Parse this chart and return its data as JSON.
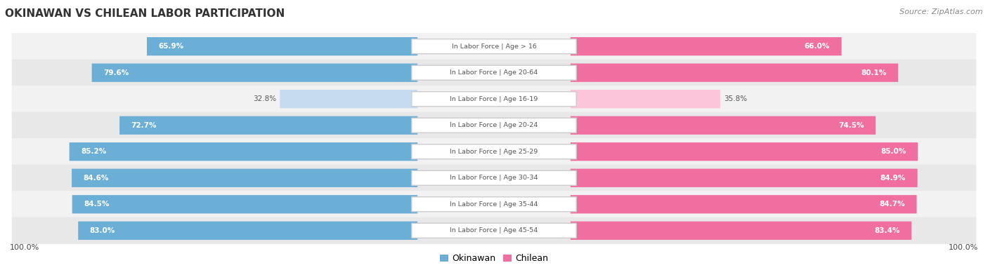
{
  "title": "OKINAWAN VS CHILEAN LABOR PARTICIPATION",
  "source": "Source: ZipAtlas.com",
  "categories": [
    "In Labor Force | Age > 16",
    "In Labor Force | Age 20-64",
    "In Labor Force | Age 16-19",
    "In Labor Force | Age 20-24",
    "In Labor Force | Age 25-29",
    "In Labor Force | Age 30-34",
    "In Labor Force | Age 35-44",
    "In Labor Force | Age 45-54"
  ],
  "okinawan_values": [
    65.9,
    79.6,
    32.8,
    72.7,
    85.2,
    84.6,
    84.5,
    83.0
  ],
  "chilean_values": [
    66.0,
    80.1,
    35.8,
    74.5,
    85.0,
    84.9,
    84.7,
    83.4
  ],
  "okinawan_color": "#6baed6",
  "chilean_color": "#f06fa0",
  "okinawan_color_light": "#c6dbef",
  "chilean_color_light": "#fcc5da",
  "row_bg_even": "#f2f2f2",
  "row_bg_odd": "#e8e8e8",
  "label_white": "#ffffff",
  "label_dark": "#555555",
  "title_color": "#333333",
  "source_color": "#888888",
  "pill_border_color": "#cccccc",
  "max_value": 100.0,
  "legend_labels": [
    "Okinawan",
    "Chilean"
  ],
  "xlabel": "100.0%"
}
